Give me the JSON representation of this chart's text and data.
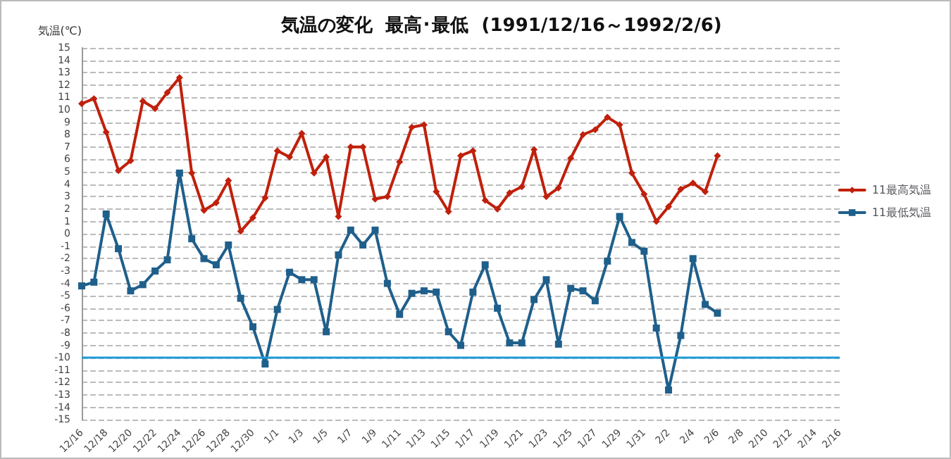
{
  "chart_data": {
    "type": "line",
    "title": "気温の変化  最高･最低  (1991/12/16～1992/2/6)",
    "ylabel": "気温(℃)",
    "categories": [
      "12/16",
      null,
      "12/18",
      null,
      "12/20",
      null,
      "12/22",
      null,
      "12/24",
      null,
      "12/26",
      null,
      "12/28",
      null,
      "12/30",
      null,
      "1/1",
      null,
      "1/3",
      null,
      "1/5",
      null,
      "1/7",
      null,
      "1/9",
      null,
      "1/11",
      null,
      "1/13",
      null,
      "1/15",
      null,
      "1/17",
      null,
      "1/19",
      null,
      "1/21",
      null,
      "1/23",
      null,
      "1/25",
      null,
      "1/27",
      null,
      "1/29",
      null,
      "1/31",
      null,
      "2/2",
      null,
      "2/4",
      null,
      "2/6",
      null,
      "2/8",
      null,
      "2/10",
      null,
      "2/12",
      null,
      "2/14",
      null,
      "2/16"
    ],
    "series": [
      {
        "name": "11最高気温",
        "color": "#c0200c",
        "marker": "diamond",
        "values": [
          10.5,
          10.9,
          8.2,
          5.1,
          5.9,
          10.7,
          10.1,
          11.4,
          12.6,
          4.9,
          1.9,
          2.5,
          4.3,
          0.2,
          1.3,
          2.9,
          6.7,
          6.2,
          8.1,
          4.9,
          6.2,
          1.4,
          7.0,
          7.0,
          2.8,
          3.0,
          5.8,
          8.6,
          8.8,
          3.4,
          1.8,
          6.3,
          6.7,
          2.7,
          2.0,
          3.3,
          3.8,
          6.8,
          3.0,
          3.7,
          6.1,
          8.0,
          8.4,
          9.4,
          8.8,
          4.9,
          3.2,
          1.0,
          2.2,
          3.6,
          4.1,
          3.4,
          6.3,
          null,
          null,
          null,
          null,
          null,
          null,
          null,
          null,
          null,
          null
        ]
      },
      {
        "name": "11最低気温",
        "color": "#1f5f8b",
        "marker": "square",
        "values": [
          -4.2,
          -3.9,
          1.6,
          -1.2,
          -4.6,
          -4.1,
          -3.0,
          -2.1,
          4.9,
          -0.4,
          -2.0,
          -2.5,
          -0.9,
          -5.2,
          -7.5,
          -10.5,
          -6.1,
          -3.1,
          -3.7,
          -3.7,
          -7.9,
          -1.7,
          0.3,
          -0.9,
          0.3,
          -4.0,
          -6.5,
          -4.8,
          -4.6,
          -4.7,
          -7.9,
          -9.0,
          -4.7,
          -2.5,
          -6.0,
          -8.8,
          -8.8,
          -5.3,
          -3.7,
          -8.9,
          -4.4,
          -4.6,
          -5.4,
          -2.2,
          1.4,
          -0.7,
          -1.4,
          -7.6,
          -12.6,
          -8.2,
          -2.0,
          -5.7,
          -6.4,
          null,
          null,
          null,
          null,
          null,
          null,
          null,
          null,
          null,
          null
        ]
      }
    ],
    "ylim": [
      -15,
      15
    ],
    "yticks": [
      -15,
      -14,
      -13,
      -12,
      -11,
      -10,
      -9,
      -8,
      -7,
      -6,
      -5,
      -4,
      -3,
      -2,
      -1,
      0,
      1,
      2,
      3,
      4,
      5,
      6,
      7,
      8,
      9,
      10,
      11,
      12,
      13,
      14,
      15
    ],
    "ref_lines": [
      {
        "axis": "y",
        "value": -10,
        "color": "#1f9bd7"
      }
    ],
    "grid": "y",
    "legend": "right",
    "line_style": "solid"
  }
}
